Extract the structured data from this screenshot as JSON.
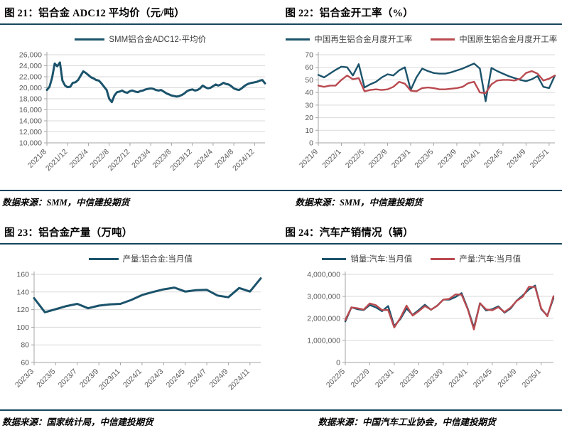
{
  "colors": {
    "line_blue": "#1B536B",
    "line_red": "#B94A50",
    "rule_dark": "#16455C",
    "grid": "#D9D9D9",
    "axis": "#A6A6A6",
    "tick_text": "#595959"
  },
  "sources": {
    "s21": "数据来源：SMM，中信建投期货",
    "s22": "数据来源：SMM，中信建投期货",
    "s23": "数据来源：国家统计局，中信建投期货",
    "s24": "数据来源：中国汽车工业协会，中信建投期货"
  },
  "chart_data": [
    {
      "id": "adc12-price",
      "type": "line",
      "title": "图 21：铝合金 ADC12 平均价（元/吨）",
      "source": "数据来源：SMM，中信建投期货",
      "xlabel": "",
      "ylabel": "",
      "grid": true,
      "legend_position": "top",
      "ylim": [
        10000,
        26000
      ],
      "y_step": 2000,
      "x_ticks": [
        "2021/8",
        "2021/12",
        "2022/4",
        "2022/8",
        "2022/12",
        "2023/4",
        "2023/8",
        "2023/12",
        "2024/4",
        "2024/8",
        "2024/12"
      ],
      "x_tick_every": 8,
      "sampling": "semi-monthly 2021/8 - 2025/2",
      "series": [
        {
          "name": "SMM铝合金ADC12-平均价",
          "colorKey": "line_blue",
          "values": [
            19600,
            20200,
            21800,
            24400,
            23900,
            24600,
            21300,
            20400,
            20100,
            20200,
            20900,
            21000,
            21400,
            22200,
            23000,
            22700,
            22300,
            21900,
            21700,
            21400,
            21300,
            20800,
            20200,
            19600,
            18000,
            17400,
            18600,
            19200,
            19300,
            19500,
            19200,
            19100,
            19400,
            19500,
            19300,
            19200,
            19400,
            19500,
            19700,
            19800,
            19900,
            19800,
            19600,
            19500,
            19600,
            19300,
            19000,
            18800,
            18600,
            18500,
            18400,
            18500,
            18700,
            19000,
            19400,
            19600,
            19700,
            19500,
            19600,
            19900,
            20400,
            20100,
            19900,
            20000,
            20300,
            20600,
            20400,
            20600,
            20900,
            20700,
            20600,
            20300,
            19900,
            19700,
            19600,
            19900,
            20300,
            20600,
            20800,
            20900,
            21000,
            21100,
            21300,
            21400,
            20800
          ]
        }
      ]
    },
    {
      "id": "operating-rate",
      "type": "line",
      "title": "图 22：铝合金开工率（%）",
      "source": "数据来源：SMM，中信建投期货",
      "xlabel": "",
      "ylabel": "",
      "grid": true,
      "legend_position": "top",
      "ylim": [
        0,
        70
      ],
      "y_step": 10,
      "x_ticks": [
        "2021/9",
        "2022/1",
        "2022/5",
        "2022/9",
        "2023/1",
        "2023/5",
        "2023/9",
        "2024/1",
        "2024/5",
        "2024/9",
        "2025/1"
      ],
      "x_tick_every": 4,
      "sampling": "monthly 2021/9 - 2025/2",
      "series": [
        {
          "name": "中国再生铝合金月度开工率",
          "colorKey": "line_blue",
          "values": [
            54,
            52,
            55,
            58,
            60.5,
            60,
            53.5,
            62.5,
            44,
            46.5,
            48.5,
            52,
            54.5,
            53.5,
            57.5,
            60,
            42,
            52,
            59,
            57,
            55.5,
            55,
            55,
            56,
            57.5,
            59,
            61,
            63,
            59,
            33,
            59.5,
            57,
            55,
            53,
            51.5,
            50,
            49,
            50.5,
            53,
            44.5,
            43.5,
            53.5
          ]
        },
        {
          "name": "中国原生铝合金月度开工率",
          "colorKey": "line_red",
          "values": [
            45.5,
            44.5,
            45.5,
            45.5,
            50,
            53.5,
            50.5,
            51.5,
            41,
            42,
            42.5,
            42,
            42.5,
            44.5,
            48.5,
            47,
            41.5,
            41,
            43.5,
            44,
            43.5,
            42.5,
            42.5,
            43,
            43.5,
            44.5,
            47.5,
            48.5,
            40,
            39.5,
            46.5,
            49.5,
            50,
            50,
            49.5,
            51,
            55.5,
            57,
            55,
            49.5,
            51,
            53.5
          ]
        }
      ]
    },
    {
      "id": "alloy-output",
      "type": "line",
      "title": "图 23：铝合金产量（万吨）",
      "source": "数据来源：国家统计局，中信建投期货",
      "xlabel": "",
      "ylabel": "",
      "grid": true,
      "legend_position": "top",
      "ylim": [
        60,
        160
      ],
      "y_step": 20,
      "x_ticks": [
        "2023/3",
        "2023/5",
        "2023/7",
        "2023/9",
        "2023/11",
        "2024/1",
        "2024/3",
        "2024/5",
        "2024/7",
        "2024/9",
        "2024/11"
      ],
      "x_tick_every": 2,
      "sampling": "monthly 2023/3 - 2024/12",
      "series": [
        {
          "name": "产量:铝合金:当月值",
          "colorKey": "line_blue",
          "values": [
            133,
            117,
            120.5,
            124,
            126.5,
            121.5,
            124.5,
            126,
            126.5,
            131,
            136.5,
            140,
            143,
            145,
            140.5,
            142,
            142.5,
            136,
            134,
            144.5,
            140.5,
            155.5
          ]
        }
      ]
    },
    {
      "id": "auto-prod-sales",
      "type": "line",
      "title": "图 24：汽车产销情况（辆）",
      "source": "数据来源：中国汽车工业协会，中信建投期货",
      "xlabel": "",
      "ylabel": "",
      "grid": true,
      "legend_position": "top",
      "ylim": [
        0,
        4000000
      ],
      "y_step": 1000000,
      "x_ticks": [
        "2022/5",
        "2022/9",
        "2023/1",
        "2023/5",
        "2023/9",
        "2024/1",
        "2024/5",
        "2024/9",
        "2025/1"
      ],
      "x_tick_every": 4,
      "sampling": "monthly 2022/5 - 2025/3",
      "series": [
        {
          "name": "销量:汽车:当月值",
          "colorKey": "line_blue",
          "values": [
            1860000,
            2500000,
            2420000,
            2380000,
            2610000,
            2500000,
            2330000,
            2560000,
            1650000,
            1980000,
            2450000,
            2160000,
            2380000,
            2620000,
            2390000,
            2580000,
            2850000,
            2850000,
            2970000,
            3150000,
            2440000,
            1580000,
            2690000,
            2360000,
            2420000,
            2550000,
            2260000,
            2450000,
            2810000,
            3050000,
            3320000,
            3490000,
            2420000,
            2130000,
            2920000
          ]
        },
        {
          "name": "产量:汽车:当月值",
          "colorKey": "line_red",
          "values": [
            1930000,
            2500000,
            2460000,
            2400000,
            2680000,
            2600000,
            2380000,
            2380000,
            1590000,
            2030000,
            2580000,
            2130000,
            2330000,
            2560000,
            2400000,
            2570000,
            2850000,
            2890000,
            3090000,
            3080000,
            2410000,
            1500000,
            2690000,
            2410000,
            2370000,
            2510000,
            2290000,
            2490000,
            2800000,
            2990000,
            3440000,
            3430000,
            2450000,
            2100000,
            3010000
          ]
        }
      ]
    }
  ]
}
